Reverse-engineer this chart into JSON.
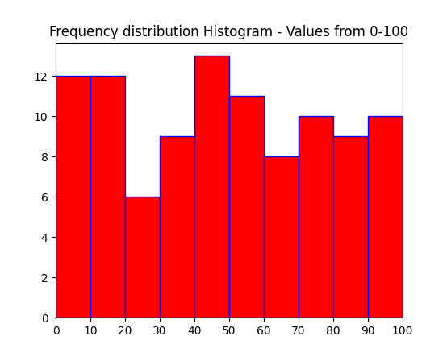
{
  "title": "Frequency distribution Histogram - Values from 0-100",
  "bin_edges": [
    0,
    10,
    20,
    30,
    40,
    50,
    60,
    70,
    80,
    90,
    100
  ],
  "frequencies": [
    12,
    12,
    6,
    9,
    13,
    11,
    8,
    10,
    9,
    10
  ],
  "bar_color": "red",
  "edge_color": "blue",
  "xlim": [
    0,
    100
  ],
  "ylim": [
    0,
    13.65
  ],
  "xticks": [
    0,
    10,
    20,
    30,
    40,
    50,
    60,
    70,
    80,
    90,
    100
  ],
  "yticks": [
    0,
    2,
    4,
    6,
    8,
    10,
    12
  ],
  "figsize": [
    5.54,
    4.43
  ],
  "dpi": 100,
  "linewidth": 1.0
}
